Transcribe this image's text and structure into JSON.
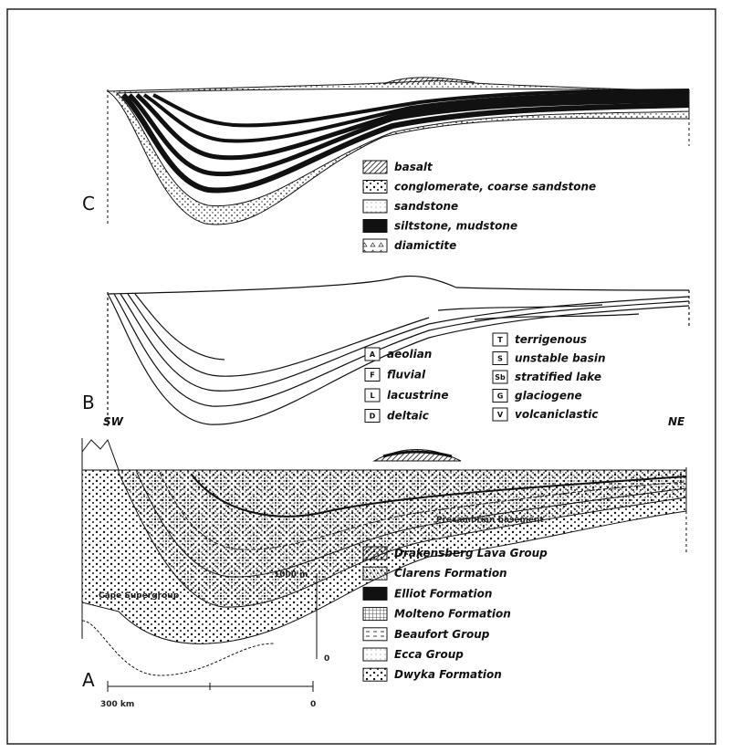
{
  "panel_c": {
    "label": "C",
    "legend": [
      "basalt",
      "conglomerate, coarse sandstone",
      "sandstone",
      "siltstone, mudstone",
      "diamictite"
    ]
  },
  "panel_b": {
    "label": "B",
    "legend": [
      {
        "symbol": "A",
        "label": "aeolian"
      },
      {
        "symbol": "F",
        "label": "fluvial"
      },
      {
        "symbol": "L",
        "label": "lacustrine"
      },
      {
        "symbol": "D",
        "label": "deltaic"
      },
      {
        "symbol": "T",
        "label": "terrigenous"
      },
      {
        "symbol": "S",
        "label": "unstable basin"
      },
      {
        "symbol": "Sb",
        "label": "stratified lake"
      },
      {
        "symbol": "G",
        "label": "glaciogene"
      },
      {
        "symbol": "V",
        "label": "volcaniclastic"
      }
    ]
  },
  "panel_a": {
    "label": "A",
    "left_end": "SW",
    "right_end": "NE",
    "annotations": [
      "Cape Supergroup",
      "Precambrian basement"
    ],
    "vertical_scale": [
      "1000 m",
      "0"
    ],
    "horizontal_scale": [
      "300 km",
      "0"
    ],
    "legend": [
      "Drakensberg Lava Group",
      "Clarens Formation",
      "Elliot Formation",
      "Molteno Formation",
      "Beaufort Group",
      "Ecca Group",
      "Dwyka Formation"
    ]
  }
}
